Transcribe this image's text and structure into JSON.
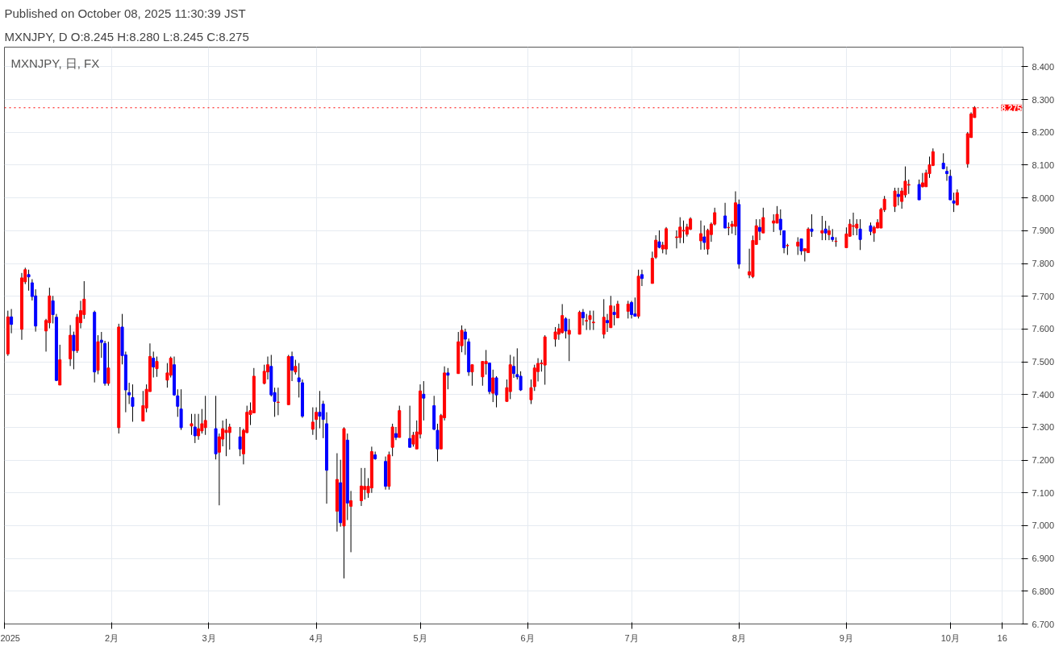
{
  "chart_data": {
    "type": "candlestick",
    "title": "Published on October 08, 2025 11:30:39 JST",
    "subtitle": "MXNJPY, D O:8.245 H:8.280 L:8.245 C:8.275",
    "annotations": [
      "MXNJPY, 日, FX"
    ],
    "x": [
      "2025-01-02",
      "2025-01-03",
      "2025-01-06",
      "2025-01-07",
      "2025-01-08",
      "2025-01-09",
      "2025-01-10",
      "2025-01-13",
      "2025-01-14",
      "2025-01-15",
      "2025-01-16",
      "2025-01-17",
      "2025-01-20",
      "2025-01-21",
      "2025-01-22",
      "2025-01-23",
      "2025-01-24",
      "2025-01-27",
      "2025-01-28",
      "2025-01-29",
      "2025-01-30",
      "2025-01-31",
      "2025-02-03",
      "2025-02-04",
      "2025-02-05",
      "2025-02-06",
      "2025-02-07",
      "2025-02-10",
      "2025-02-11",
      "2025-02-12",
      "2025-02-13",
      "2025-02-14",
      "2025-02-17",
      "2025-02-18",
      "2025-02-19",
      "2025-02-20",
      "2025-02-21",
      "2025-02-24",
      "2025-02-25",
      "2025-02-26",
      "2025-02-27",
      "2025-02-28",
      "2025-03-03",
      "2025-03-04",
      "2025-03-05",
      "2025-03-06",
      "2025-03-07",
      "2025-03-10",
      "2025-03-11",
      "2025-03-12",
      "2025-03-13",
      "2025-03-14",
      "2025-03-17",
      "2025-03-18",
      "2025-03-19",
      "2025-03-20",
      "2025-03-21",
      "2025-03-24",
      "2025-03-25",
      "2025-03-26",
      "2025-03-27",
      "2025-03-28",
      "2025-03-31",
      "2025-04-01",
      "2025-04-02",
      "2025-04-03",
      "2025-04-04",
      "2025-04-07",
      "2025-04-08",
      "2025-04-09",
      "2025-04-10",
      "2025-04-11",
      "2025-04-14",
      "2025-04-15",
      "2025-04-16",
      "2025-04-17",
      "2025-04-18",
      "2025-04-21",
      "2025-04-22",
      "2025-04-23",
      "2025-04-24",
      "2025-04-25",
      "2025-04-28",
      "2025-04-29",
      "2025-04-30",
      "2025-05-01",
      "2025-05-02",
      "2025-05-05",
      "2025-05-06",
      "2025-05-07",
      "2025-05-08",
      "2025-05-09",
      "2025-05-12",
      "2025-05-13",
      "2025-05-14",
      "2025-05-15",
      "2025-05-16",
      "2025-05-19",
      "2025-05-20",
      "2025-05-21",
      "2025-05-22",
      "2025-05-23",
      "2025-05-26",
      "2025-05-27",
      "2025-05-28",
      "2025-05-29",
      "2025-05-30",
      "2025-06-02",
      "2025-06-03",
      "2025-06-04",
      "2025-06-05",
      "2025-06-06",
      "2025-06-09",
      "2025-06-10",
      "2025-06-11",
      "2025-06-12",
      "2025-06-13",
      "2025-06-16",
      "2025-06-17",
      "2025-06-18",
      "2025-06-19",
      "2025-06-20",
      "2025-06-23",
      "2025-06-24",
      "2025-06-25",
      "2025-06-26",
      "2025-06-27",
      "2025-06-30",
      "2025-07-01",
      "2025-07-02",
      "2025-07-03",
      "2025-07-04",
      "2025-07-07",
      "2025-07-08",
      "2025-07-09",
      "2025-07-10",
      "2025-07-11",
      "2025-07-14",
      "2025-07-15",
      "2025-07-16",
      "2025-07-17",
      "2025-07-18",
      "2025-07-21",
      "2025-07-22",
      "2025-07-23",
      "2025-07-24",
      "2025-07-25",
      "2025-07-28",
      "2025-07-29",
      "2025-07-30",
      "2025-07-31",
      "2025-08-01",
      "2025-08-04",
      "2025-08-05",
      "2025-08-06",
      "2025-08-07",
      "2025-08-08",
      "2025-08-11",
      "2025-08-12",
      "2025-08-13",
      "2025-08-14",
      "2025-08-15",
      "2025-08-18",
      "2025-08-19",
      "2025-08-20",
      "2025-08-21",
      "2025-08-22",
      "2025-08-25",
      "2025-08-26",
      "2025-08-27",
      "2025-08-28",
      "2025-08-29",
      "2025-09-01",
      "2025-09-02",
      "2025-09-03",
      "2025-09-04",
      "2025-09-05",
      "2025-09-08",
      "2025-09-09",
      "2025-09-10",
      "2025-09-11",
      "2025-09-12",
      "2025-09-15",
      "2025-09-16",
      "2025-09-17",
      "2025-09-18",
      "2025-09-19",
      "2025-09-22",
      "2025-09-23",
      "2025-09-24",
      "2025-09-25",
      "2025-09-26",
      "2025-09-29",
      "2025-09-30",
      "2025-10-01",
      "2025-10-02",
      "2025-10-03",
      "2025-10-06",
      "2025-10-07",
      "2025-10-08"
    ],
    "ohlc": [
      [
        7.524,
        7.656,
        7.518,
        7.637
      ],
      [
        7.637,
        7.661,
        7.587,
        7.614
      ],
      [
        7.599,
        7.771,
        7.567,
        7.756
      ],
      [
        7.744,
        7.787,
        7.737,
        7.781
      ],
      [
        7.766,
        7.781,
        7.717,
        7.759
      ],
      [
        7.741,
        7.752,
        7.687,
        7.699
      ],
      [
        7.701,
        7.721,
        7.592,
        7.609
      ],
      [
        7.594,
        7.631,
        7.531,
        7.626
      ],
      [
        7.619,
        7.726,
        7.602,
        7.701
      ],
      [
        7.686,
        7.701,
        7.617,
        7.644
      ],
      [
        7.636,
        7.646,
        7.441,
        7.443
      ],
      [
        7.429,
        7.552,
        7.429,
        7.506
      ],
      [
        7.509,
        7.612,
        7.487,
        7.581
      ],
      [
        7.581,
        7.592,
        7.477,
        7.534
      ],
      [
        7.534,
        7.646,
        7.527,
        7.636
      ],
      [
        7.619,
        7.686,
        7.602,
        7.656
      ],
      [
        7.644,
        7.746,
        7.631,
        7.691
      ],
      [
        7.651,
        7.656,
        7.437,
        7.469
      ],
      [
        7.474,
        7.581,
        7.462,
        7.561
      ],
      [
        7.566,
        7.591,
        7.512,
        7.559
      ],
      [
        7.556,
        7.564,
        7.427,
        7.434
      ],
      [
        7.434,
        7.561,
        7.427,
        7.481
      ],
      [
        7.299,
        7.616,
        7.281,
        7.606
      ],
      [
        7.606,
        7.646,
        7.492,
        7.519
      ],
      [
        7.521,
        7.531,
        7.346,
        7.414
      ],
      [
        7.406,
        7.436,
        7.371,
        7.399
      ],
      [
        7.391,
        7.431,
        7.317,
        7.364
      ],
      [
        7.319,
        7.411,
        7.319,
        7.366
      ],
      [
        7.359,
        7.431,
        7.346,
        7.416
      ],
      [
        7.409,
        7.556,
        7.409,
        7.516
      ],
      [
        7.511,
        7.531,
        7.452,
        7.484
      ],
      [
        7.479,
        7.516,
        7.454,
        7.501
      ],
      [
        7.444,
        7.496,
        7.421,
        7.466
      ],
      [
        7.459,
        7.516,
        7.452,
        7.511
      ],
      [
        7.491,
        7.516,
        7.396,
        7.399
      ],
      [
        7.396,
        7.416,
        7.332,
        7.364
      ],
      [
        7.356,
        7.416,
        7.292,
        7.299
      ],
      [
        7.304,
        7.341,
        7.277,
        7.311
      ],
      [
        7.301,
        7.341,
        7.252,
        7.274
      ],
      [
        7.274,
        7.341,
        7.262,
        7.296
      ],
      [
        7.289,
        7.356,
        7.281,
        7.311
      ],
      [
        7.299,
        7.396,
        7.277,
        7.321
      ],
      [
        7.296,
        7.396,
        7.202,
        7.219
      ],
      [
        7.224,
        7.281,
        7.062,
        7.271
      ],
      [
        7.264,
        7.321,
        7.242,
        7.296
      ],
      [
        7.284,
        7.326,
        7.212,
        7.291
      ],
      [
        7.284,
        7.311,
        7.232,
        7.301
      ],
      [
        7.271,
        7.301,
        7.212,
        7.234
      ],
      [
        7.219,
        7.296,
        7.187,
        7.291
      ],
      [
        7.284,
        7.366,
        7.282,
        7.346
      ],
      [
        7.339,
        7.376,
        7.307,
        7.351
      ],
      [
        7.344,
        7.481,
        7.344,
        7.456
      ],
      [
        7.434,
        7.491,
        7.431,
        7.471
      ],
      [
        7.469,
        7.516,
        7.446,
        7.491
      ],
      [
        7.486,
        7.521,
        7.394,
        7.399
      ],
      [
        7.406,
        7.421,
        7.332,
        7.379
      ],
      [
        7.376,
        7.421,
        7.337,
        7.377
      ],
      [
        7.369,
        7.521,
        7.369,
        7.516
      ],
      [
        7.516,
        7.531,
        7.441,
        7.474
      ],
      [
        7.469,
        7.506,
        7.461,
        7.486
      ],
      [
        7.451,
        7.496,
        7.391,
        7.439
      ],
      [
        7.436,
        7.446,
        7.329,
        7.334
      ],
      [
        7.294,
        7.361,
        7.277,
        7.316
      ],
      [
        7.324,
        7.361,
        7.262,
        7.346
      ],
      [
        7.346,
        7.411,
        7.297,
        7.334
      ],
      [
        7.371,
        7.381,
        7.267,
        7.324
      ],
      [
        7.311,
        7.346,
        7.067,
        7.169
      ],
      [
        7.044,
        7.221,
        6.982,
        7.141
      ],
      [
        7.131,
        7.201,
        6.997,
        7.009
      ],
      [
        6.999,
        7.3,
        6.839,
        7.296
      ],
      [
        7.261,
        7.281,
        7.017,
        7.069
      ],
      [
        7.059,
        7.106,
        6.919,
        7.076
      ],
      [
        7.076,
        7.176,
        7.06,
        7.121
      ],
      [
        7.11,
        7.176,
        7.08,
        7.12
      ],
      [
        7.1,
        7.145,
        7.085,
        7.12
      ],
      [
        7.115,
        7.241,
        7.1,
        7.226
      ],
      [
        7.216,
        7.226,
        7.201,
        7.204
      ],
      [
        7.196,
        7.211,
        7.11,
        7.12
      ],
      [
        7.12,
        7.226,
        7.11,
        7.216
      ],
      [
        7.239,
        7.311,
        7.212,
        7.301
      ],
      [
        7.281,
        7.301,
        7.261,
        7.269
      ],
      [
        7.269,
        7.366,
        7.269,
        7.351
      ],
      [
        7.266,
        7.366,
        7.239,
        7.239
      ],
      [
        7.249,
        7.286,
        7.241,
        7.276
      ],
      [
        7.234,
        7.321,
        7.234,
        7.286
      ],
      [
        7.279,
        7.431,
        7.266,
        7.411
      ],
      [
        7.401,
        7.441,
        7.321,
        7.389
      ],
      [
        7.366,
        7.396,
        7.291,
        7.294
      ],
      [
        7.291,
        7.311,
        7.196,
        7.234
      ],
      [
        7.234,
        7.341,
        7.234,
        7.336
      ],
      [
        7.329,
        7.486,
        7.321,
        7.466
      ],
      [
        7.466,
        7.481,
        7.416,
        7.459
      ],
      [
        7.464,
        7.591,
        7.464,
        7.561
      ],
      [
        7.549,
        7.611,
        7.529,
        7.596
      ],
      [
        7.591,
        7.601,
        7.521,
        7.569
      ],
      [
        7.561,
        7.571,
        7.457,
        7.469
      ],
      [
        7.469,
        7.491,
        7.427,
        7.491
      ],
      [
        7.454,
        7.501,
        7.427,
        7.501
      ],
      [
        7.494,
        7.536,
        7.461,
        7.501
      ],
      [
        7.496,
        7.496,
        7.401,
        7.409
      ],
      [
        7.404,
        7.476,
        7.377,
        7.451
      ],
      [
        7.451,
        7.456,
        7.361,
        7.399
      ],
      [
        7.379,
        7.446,
        7.379,
        7.421
      ],
      [
        7.409,
        7.521,
        7.386,
        7.491
      ],
      [
        7.486,
        7.516,
        7.451,
        7.464
      ],
      [
        7.461,
        7.541,
        7.446,
        7.454
      ],
      [
        7.456,
        7.471,
        7.411,
        7.414
      ],
      [
        7.384,
        7.446,
        7.371,
        7.421
      ],
      [
        7.424,
        7.491,
        7.411,
        7.481
      ],
      [
        7.47,
        7.511,
        7.44,
        7.495
      ],
      [
        7.494,
        7.506,
        7.47,
        7.496
      ],
      [
        7.49,
        7.581,
        7.43,
        7.576
      ],
      [
        7.569,
        7.606,
        7.546,
        7.591
      ],
      [
        7.584,
        7.616,
        7.567,
        7.601
      ],
      [
        7.589,
        7.676,
        7.586,
        7.641
      ],
      [
        7.631,
        7.636,
        7.571,
        7.594
      ],
      [
        7.584,
        7.631,
        7.502,
        7.596
      ],
      [
        7.584,
        7.656,
        7.584,
        7.651
      ],
      [
        7.651,
        7.661,
        7.611,
        7.634
      ],
      [
        7.624,
        7.646,
        7.597,
        7.626
      ],
      [
        7.629,
        7.656,
        7.597,
        7.641
      ],
      [
        7.619,
        7.656,
        7.597,
        7.621
      ],
      [
        7.584,
        7.691,
        7.571,
        7.636
      ],
      [
        7.626,
        7.646,
        7.591,
        7.619
      ],
      [
        7.604,
        7.701,
        7.604,
        7.671
      ],
      [
        7.651,
        7.671,
        7.611,
        7.644
      ],
      [
        7.634,
        7.686,
        7.634,
        7.676
      ],
      [
        7.654,
        7.686,
        7.632,
        7.676
      ],
      [
        7.681,
        7.686,
        7.632,
        7.644
      ],
      [
        7.646,
        7.696,
        7.639,
        7.639
      ],
      [
        7.639,
        7.781,
        7.632,
        7.761
      ],
      [
        7.766,
        7.781,
        7.731,
        7.754
      ],
      [
        7.739,
        7.836,
        7.739,
        7.816
      ],
      [
        7.819,
        7.886,
        7.814,
        7.871
      ],
      [
        7.866,
        7.901,
        7.846,
        7.849
      ],
      [
        7.844,
        7.866,
        7.831,
        7.856
      ],
      [
        7.844,
        7.911,
        7.827,
        7.906
      ],
      [
        7.879,
        7.901,
        7.846,
        7.881
      ],
      [
        7.879,
        7.941,
        7.862,
        7.911
      ],
      [
        7.899,
        7.931,
        7.862,
        7.901
      ],
      [
        7.889,
        7.921,
        7.882,
        7.911
      ],
      [
        7.904,
        7.941,
        7.902,
        7.936
      ],
      [
        7.869,
        7.931,
        7.842,
        7.891
      ],
      [
        7.881,
        7.916,
        7.842,
        7.864
      ],
      [
        7.844,
        7.906,
        7.827,
        7.901
      ],
      [
        7.888,
        7.925,
        7.866,
        7.92
      ],
      [
        7.92,
        7.97,
        7.916,
        7.955
      ],
      [
        7.945,
        7.985,
        7.908,
        7.908
      ],
      [
        7.909,
        7.925,
        7.886,
        7.91
      ],
      [
        7.913,
        7.93,
        7.891,
        7.92
      ],
      [
        7.913,
        8.02,
        7.886,
        7.985
      ],
      [
        7.98,
        7.995,
        7.784,
        7.798
      ],
      [
        7.765,
        7.845,
        7.755,
        7.775
      ],
      [
        7.76,
        7.885,
        7.755,
        7.87
      ],
      [
        7.858,
        7.935,
        7.858,
        7.915
      ],
      [
        7.91,
        7.935,
        7.871,
        7.898
      ],
      [
        7.893,
        7.97,
        7.893,
        7.94
      ],
      [
        7.923,
        7.95,
        7.896,
        7.93
      ],
      [
        7.923,
        7.975,
        7.923,
        7.95
      ],
      [
        7.935,
        7.965,
        7.886,
        7.903
      ],
      [
        7.9,
        7.9,
        7.831,
        7.848
      ],
      [
        7.854,
        7.86,
        7.826,
        7.855
      ],
      [
        7.853,
        7.88,
        7.826,
        7.865
      ],
      [
        7.875,
        7.875,
        7.826,
        7.838
      ],
      [
        7.838,
        7.845,
        7.806,
        7.845
      ],
      [
        7.833,
        7.91,
        7.833,
        7.905
      ],
      [
        7.905,
        7.95,
        7.881,
        7.898
      ],
      [
        7.893,
        7.945,
        7.871,
        7.9
      ],
      [
        7.905,
        7.93,
        7.871,
        7.893
      ],
      [
        7.888,
        7.915,
        7.871,
        7.9
      ],
      [
        7.88,
        7.905,
        7.866,
        7.873
      ],
      [
        7.867,
        7.88,
        7.851,
        7.868
      ],
      [
        7.848,
        7.91,
        7.848,
        7.89
      ],
      [
        7.883,
        7.935,
        7.881,
        7.92
      ],
      [
        7.913,
        7.955,
        7.886,
        7.915
      ],
      [
        7.908,
        7.935,
        7.886,
        7.92
      ],
      [
        7.905,
        7.935,
        7.841,
        7.873
      ],
      [
        7.915,
        7.925,
        7.886,
        7.898
      ],
      [
        7.893,
        7.915,
        7.866,
        7.91
      ],
      [
        7.908,
        7.935,
        7.908,
        7.925
      ],
      [
        7.908,
        7.97,
        7.908,
        7.965
      ],
      [
        7.964,
        8.006,
        7.957,
        7.996
      ],
      [
        7.974,
        8.031,
        7.957,
        8.021
      ],
      [
        8.011,
        8.031,
        7.977,
        8.004
      ],
      [
        7.989,
        8.031,
        7.967,
        8.021
      ],
      [
        8.009,
        8.096,
        8.001,
        8.051
      ],
      [
        8.039,
        8.056,
        8.012,
        8.041
      ],
      [
        8.041,
        8.056,
        7.994,
        7.994
      ],
      [
        8.034,
        8.076,
        8.032,
        8.046
      ],
      [
        8.034,
        8.086,
        8.034,
        8.076
      ],
      [
        8.074,
        8.126,
        8.061,
        8.101
      ],
      [
        8.099,
        8.151,
        8.097,
        8.141
      ],
      [
        8.106,
        8.136,
        8.087,
        8.089
      ],
      [
        8.081,
        8.096,
        8.052,
        8.074
      ],
      [
        8.066,
        8.086,
        7.994,
        7.994
      ],
      [
        7.991,
        8.016,
        7.957,
        7.984
      ],
      [
        7.979,
        8.026,
        7.977,
        8.016
      ],
      [
        8.104,
        8.201,
        8.092,
        8.196
      ],
      [
        8.184,
        8.261,
        8.184,
        8.256
      ],
      [
        8.245,
        8.28,
        8.245,
        8.275
      ]
    ],
    "colors": [
      "#ff0000",
      "#0000ff",
      "#ff0000",
      "#ff0000",
      "#0000ff",
      "#0000ff",
      "#0000ff",
      "#ff0000",
      "#ff0000",
      "#0000ff",
      "#0000ff",
      "#ff0000",
      "#ff0000",
      "#0000ff",
      "#ff0000",
      "#ff0000",
      "#ff0000",
      "#0000ff",
      "#ff0000",
      "#0000ff",
      "#0000ff",
      "#ff0000",
      "#ff0000",
      "#0000ff",
      "#0000ff",
      "#0000ff",
      "#0000ff",
      "#ff0000",
      "#ff0000",
      "#ff0000",
      "#0000ff",
      "#ff0000",
      "#ff0000",
      "#ff0000",
      "#0000ff",
      "#0000ff",
      "#0000ff",
      "#ff0000",
      "#0000ff",
      "#ff0000",
      "#ff0000",
      "#ff0000",
      "#0000ff",
      "#ff0000",
      "#ff0000",
      "#ff0000",
      "#ff0000",
      "#0000ff",
      "#ff0000",
      "#ff0000",
      "#ff0000",
      "#ff0000",
      "#ff0000",
      "#ff0000",
      "#0000ff",
      "#0000ff",
      "#ff0000",
      "#ff0000",
      "#0000ff",
      "#ff0000",
      "#0000ff",
      "#0000ff",
      "#ff0000",
      "#ff0000",
      "#0000ff",
      "#0000ff",
      "#0000ff",
      "#ff0000",
      "#0000ff",
      "#ff0000",
      "#0000ff",
      "#ff0000",
      "#ff0000",
      "#ff0000",
      "#ff0000",
      "#ff0000",
      "#0000ff",
      "#0000ff",
      "#ff0000",
      "#ff0000",
      "#0000ff",
      "#ff0000",
      "#0000ff",
      "#ff0000",
      "#ff0000",
      "#ff0000",
      "#0000ff",
      "#0000ff",
      "#0000ff",
      "#ff0000",
      "#ff0000",
      "#0000ff",
      "#ff0000",
      "#ff0000",
      "#0000ff",
      "#0000ff",
      "#ff0000",
      "#ff0000",
      "#ff0000",
      "#0000ff",
      "#ff0000",
      "#0000ff",
      "#ff0000",
      "#ff0000",
      "#0000ff",
      "#0000ff",
      "#0000ff",
      "#ff0000",
      "#ff0000",
      "#ff0000",
      "#ff0000",
      "#ff0000",
      "#ff0000",
      "#ff0000",
      "#ff0000",
      "#0000ff",
      "#ff0000",
      "#ff0000",
      "#0000ff",
      "#ff0000",
      "#ff0000",
      "#ff0000",
      "#ff0000",
      "#0000ff",
      "#ff0000",
      "#0000ff",
      "#ff0000",
      "#ff0000",
      "#0000ff",
      "#0000ff",
      "#ff0000",
      "#0000ff",
      "#ff0000",
      "#ff0000",
      "#0000ff",
      "#ff0000",
      "#ff0000",
      "#ff0000",
      "#ff0000",
      "#ff0000",
      "#ff0000",
      "#ff0000",
      "#ff0000",
      "#0000ff",
      "#ff0000",
      "#ff0000",
      "#ff0000",
      "#0000ff",
      "#ff0000",
      "#ff0000",
      "#ff0000",
      "#0000ff",
      "#ff0000",
      "#ff0000",
      "#ff0000",
      "#0000ff",
      "#ff0000",
      "#ff0000",
      "#ff0000",
      "#0000ff",
      "#0000ff",
      "#ff0000",
      "#ff0000",
      "#0000ff",
      "#ff0000",
      "#ff0000",
      "#0000ff",
      "#ff0000",
      "#0000ff",
      "#ff0000",
      "#0000ff",
      "#ff0000",
      "#ff0000",
      "#ff0000",
      "#ff0000",
      "#ff0000",
      "#0000ff",
      "#0000ff",
      "#ff0000",
      "#ff0000",
      "#ff0000",
      "#ff0000",
      "#ff0000",
      "#0000ff",
      "#ff0000",
      "#ff0000",
      "#ff0000",
      "#0000ff",
      "#ff0000",
      "#ff0000",
      "#ff0000",
      "#ff0000",
      "#0000ff",
      "#0000ff",
      "#0000ff",
      "#0000ff",
      "#ff0000",
      "#ff0000",
      "#ff0000",
      "#ff0000"
    ],
    "xlim": [
      "2025-01-01",
      "2025-10-22"
    ],
    "xticks": [
      {
        "value": "2025-01-01",
        "label": "2025"
      },
      {
        "value": "2025-02-01",
        "label": "2月"
      },
      {
        "value": "2025-03-01",
        "label": "3月"
      },
      {
        "value": "2025-04-01",
        "label": "4月"
      },
      {
        "value": "2025-05-01",
        "label": "5月"
      },
      {
        "value": "2025-06-01",
        "label": "6月"
      },
      {
        "value": "2025-07-01",
        "label": "7月"
      },
      {
        "value": "2025-08-01",
        "label": "8月"
      },
      {
        "value": "2025-09-01",
        "label": "9月"
      },
      {
        "value": "2025-10-01",
        "label": "10月"
      },
      {
        "value": "2025-10-16",
        "label": "16"
      }
    ],
    "ylim": [
      6.7,
      8.46
    ],
    "yticks": [
      {
        "value": 6.7,
        "label": "6.700"
      },
      {
        "value": 6.8,
        "label": "6.800"
      },
      {
        "value": 6.9,
        "label": "6.900"
      },
      {
        "value": 7.0,
        "label": "7.000"
      },
      {
        "value": 7.1,
        "label": "7.100"
      },
      {
        "value": 7.2,
        "label": "7.200"
      },
      {
        "value": 7.3,
        "label": "7.300"
      },
      {
        "value": 7.4,
        "label": "7.400"
      },
      {
        "value": 7.5,
        "label": "7.500"
      },
      {
        "value": 7.6,
        "label": "7.600"
      },
      {
        "value": 7.7,
        "label": "7.700"
      },
      {
        "value": 7.8,
        "label": "7.800"
      },
      {
        "value": 7.9,
        "label": "7.900"
      },
      {
        "value": 8.0,
        "label": "8.000"
      },
      {
        "value": 8.1,
        "label": "8.100"
      },
      {
        "value": 8.2,
        "label": "8.200"
      },
      {
        "value": 8.3,
        "label": "8.300"
      },
      {
        "value": 8.4,
        "label": "8.400"
      }
    ],
    "ref_lines": [
      {
        "axis": "y",
        "value": 8.275,
        "label": "8.275",
        "color": "#ff0000",
        "line_style": "dotted"
      }
    ],
    "grid": true
  }
}
